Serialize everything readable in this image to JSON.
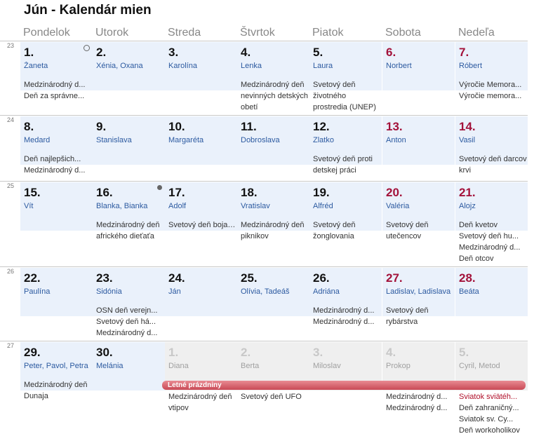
{
  "title": "Jún - Kalendár mien",
  "weekdays": [
    "Pondelok",
    "Utorok",
    "Streda",
    "Štvrtok",
    "Piatok",
    "Sobota",
    "Nedeľa"
  ],
  "weeks": [
    {
      "number": "23",
      "days": [
        {
          "day": "1.",
          "name": "Žaneta",
          "events": [
            "Medzinárodný d...",
            "Deň za správne..."
          ],
          "marker": "empty"
        },
        {
          "day": "2.",
          "name": "Xénia, Oxana",
          "events": []
        },
        {
          "day": "3.",
          "name": "Karolína",
          "events": []
        },
        {
          "day": "4.",
          "name": "Lenka",
          "events": [
            "Medzinárodný deň nevinných detských obetí"
          ]
        },
        {
          "day": "5.",
          "name": "Laura",
          "events": [
            "Svetový deň životného prostredia (UNEP)"
          ]
        },
        {
          "day": "6.",
          "name": "Norbert",
          "events": [],
          "holiday": true
        },
        {
          "day": "7.",
          "name": "Róbert",
          "events": [
            "Výročie Memora...",
            "Výročie memora..."
          ],
          "holiday": true
        }
      ]
    },
    {
      "number": "24",
      "days": [
        {
          "day": "8.",
          "name": "Medard",
          "events": [
            "Deň najlepšich...",
            "Medzinárodný d..."
          ]
        },
        {
          "day": "9.",
          "name": "Stanislava",
          "events": []
        },
        {
          "day": "10.",
          "name": "Margaréta",
          "events": []
        },
        {
          "day": "11.",
          "name": "Dobroslava",
          "events": []
        },
        {
          "day": "12.",
          "name": "Zlatko",
          "events": [
            "Svetový deň proti detskej práci"
          ]
        },
        {
          "day": "13.",
          "name": "Anton",
          "events": [],
          "holiday": true
        },
        {
          "day": "14.",
          "name": "Vasil",
          "events": [
            "Svetový deň darcov krvi"
          ],
          "holiday": true
        }
      ]
    },
    {
      "number": "25",
      "days": [
        {
          "day": "15.",
          "name": "Vít",
          "events": []
        },
        {
          "day": "16.",
          "name": "Blanka, Bianka",
          "events": [
            "Medzinárodný deň afrického dieťaťa"
          ],
          "marker": "full"
        },
        {
          "day": "17.",
          "name": "Adolf",
          "events": [
            "Svetový deň boja proti rozširovaniu púští a su..."
          ]
        },
        {
          "day": "18.",
          "name": "Vratislav",
          "events": [
            "Medzinárodný deň piknikov"
          ]
        },
        {
          "day": "19.",
          "name": "Alfréd",
          "events": [
            "Svetový deň žonglovania"
          ]
        },
        {
          "day": "20.",
          "name": "Valéria",
          "events": [
            "Svetový deň utečencov"
          ],
          "holiday": true
        },
        {
          "day": "21.",
          "name": "Alojz",
          "events": [
            "Deň kvetov",
            "Svetový deň hu...",
            "Medzinárodný d...",
            "Deň otcov"
          ],
          "holiday": true
        }
      ]
    },
    {
      "number": "26",
      "days": [
        {
          "day": "22.",
          "name": "Paulína",
          "events": []
        },
        {
          "day": "23.",
          "name": "Sidónia",
          "events": [
            "OSN deň verejn...",
            "Svetový deň há...",
            "Medzinárodný d..."
          ]
        },
        {
          "day": "24.",
          "name": "Ján",
          "events": []
        },
        {
          "day": "25.",
          "name": "Olívia, Tadeáš",
          "events": []
        },
        {
          "day": "26.",
          "name": "Adriána",
          "events": [
            "Medzinárodný d...",
            "Medzinárodný d..."
          ]
        },
        {
          "day": "27.",
          "name": "Ladislav, Ladislava",
          "events": [
            "Svetový deň rybárstva"
          ],
          "holiday": true
        },
        {
          "day": "28.",
          "name": "Beáta",
          "events": [],
          "holiday": true
        }
      ]
    },
    {
      "number": "27",
      "days": [
        {
          "day": "29.",
          "name": "Peter, Pavol, Petra",
          "events": [
            "Medzinárodný deň Dunaja"
          ]
        },
        {
          "day": "30.",
          "name": "Melánia",
          "events": []
        },
        {
          "day": "1.",
          "name": "Diana",
          "events": [
            "Medzinárodný deň vtipov"
          ],
          "outside": true
        },
        {
          "day": "2.",
          "name": "Berta",
          "events": [
            "Svetový deň UFO"
          ],
          "outside": true
        },
        {
          "day": "3.",
          "name": "Miloslav",
          "events": [],
          "outside": true
        },
        {
          "day": "4.",
          "name": "Prokop",
          "events": [
            "Medzinárodný d...",
            "Medzinárodný d..."
          ],
          "outside": true
        },
        {
          "day": "5.",
          "name": "Cyril, Metod",
          "events": [
            "Sviatok sviätéh...",
            "Deň zahraničný...",
            "Sviatok sv. Cy...",
            "Deň workoholikov"
          ],
          "outside": true,
          "red_first": true
        }
      ]
    }
  ],
  "banner": {
    "label": "Letné prázdniny"
  },
  "colors": {
    "weekday_head": "#eaf1fb",
    "outside_head": "#efefef",
    "holiday": "#a3123a",
    "name_link": "#2c5aa0",
    "banner": "#d05a66"
  }
}
